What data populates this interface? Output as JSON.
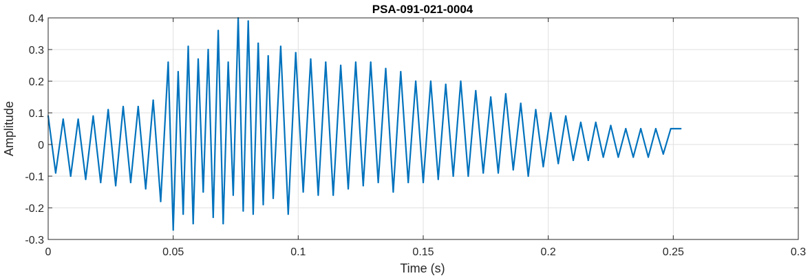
{
  "chart_data": {
    "type": "line",
    "title": "PSA-091-021-0004",
    "xlabel": "Time (s)",
    "ylabel": "Amplitude",
    "xlim": [
      0,
      0.3
    ],
    "ylim": [
      -0.3,
      0.4
    ],
    "xticks": [
      0,
      0.05,
      0.1,
      0.15,
      0.2,
      0.25,
      0.3
    ],
    "xtick_labels": [
      "0",
      "0.05",
      "0.1",
      "0.15",
      "0.2",
      "0.25",
      "0.3"
    ],
    "yticks": [
      -0.3,
      -0.2,
      -0.1,
      0,
      0.1,
      0.2,
      0.3,
      0.4
    ],
    "ytick_labels": [
      "-0.3",
      "-0.2",
      "-0.1",
      "0",
      "0.1",
      "0.2",
      "0.3",
      "0.4"
    ],
    "grid": true,
    "line_color": "#0072BD",
    "series": [
      {
        "x": [
          0,
          0.003,
          0.006,
          0.009,
          0.012,
          0.015,
          0.018,
          0.021,
          0.024,
          0.027,
          0.03,
          0.033,
          0.036,
          0.039,
          0.042,
          0.045,
          0.048,
          0.05,
          0.052,
          0.054,
          0.056,
          0.058,
          0.06,
          0.062,
          0.064,
          0.066,
          0.068,
          0.07,
          0.072,
          0.074,
          0.076,
          0.078,
          0.08,
          0.082,
          0.084,
          0.086,
          0.088,
          0.09,
          0.093,
          0.096,
          0.099,
          0.102,
          0.105,
          0.108,
          0.111,
          0.114,
          0.117,
          0.12,
          0.123,
          0.126,
          0.129,
          0.132,
          0.135,
          0.138,
          0.141,
          0.144,
          0.147,
          0.15,
          0.153,
          0.156,
          0.159,
          0.162,
          0.165,
          0.168,
          0.171,
          0.174,
          0.177,
          0.18,
          0.183,
          0.186,
          0.189,
          0.192,
          0.195,
          0.198,
          0.201,
          0.204,
          0.207,
          0.21,
          0.213,
          0.216,
          0.219,
          0.222,
          0.225,
          0.228,
          0.231,
          0.234,
          0.237,
          0.24,
          0.243,
          0.246,
          0.249,
          0.253
        ],
        "y": [
          0.09,
          -0.09,
          0.08,
          -0.1,
          0.08,
          -0.11,
          0.09,
          -0.12,
          0.11,
          -0.13,
          0.12,
          -0.12,
          0.12,
          -0.14,
          0.14,
          -0.18,
          0.26,
          -0.27,
          0.23,
          -0.22,
          0.31,
          -0.25,
          0.27,
          -0.15,
          0.3,
          -0.23,
          0.36,
          -0.25,
          0.26,
          -0.16,
          0.4,
          -0.21,
          0.39,
          -0.22,
          0.32,
          -0.19,
          0.28,
          -0.17,
          0.31,
          -0.22,
          0.29,
          -0.15,
          0.27,
          -0.16,
          0.26,
          -0.16,
          0.25,
          -0.14,
          0.26,
          -0.13,
          0.26,
          -0.12,
          0.24,
          -0.15,
          0.23,
          -0.12,
          0.2,
          -0.12,
          0.2,
          -0.11,
          0.19,
          -0.1,
          0.2,
          -0.1,
          0.17,
          -0.09,
          0.15,
          -0.09,
          0.16,
          -0.08,
          0.13,
          -0.1,
          0.11,
          -0.07,
          0.1,
          -0.06,
          0.09,
          -0.05,
          0.07,
          -0.05,
          0.07,
          -0.04,
          0.06,
          -0.04,
          0.05,
          -0.04,
          0.05,
          -0.04,
          0.05,
          -0.03,
          0.05,
          0.05
        ]
      }
    ]
  }
}
